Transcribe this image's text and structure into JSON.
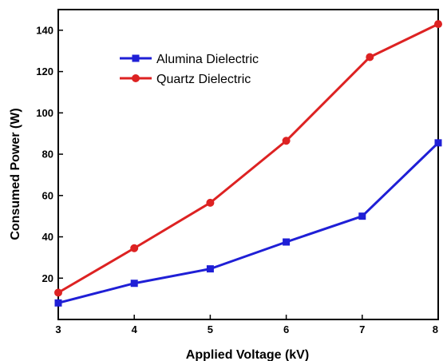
{
  "chart_data": {
    "type": "line",
    "title": "",
    "xlabel": "Applied Voltage (kV)",
    "ylabel": "Consumed Power (W)",
    "xlim": [
      3,
      8
    ],
    "ylim": [
      0,
      150
    ],
    "x_ticks": [
      "3",
      "4",
      "5",
      "6",
      "7",
      "8"
    ],
    "y_ticks": [
      "20",
      "40",
      "60",
      "80",
      "100",
      "120",
      "140"
    ],
    "grid": false,
    "legend_position": "upper-left",
    "series": [
      {
        "name": "Alumina Dielectric",
        "color": "#1f1fd6",
        "marker": "square",
        "x": [
          3,
          4,
          5,
          6,
          7,
          8
        ],
        "y": [
          8,
          17.5,
          24.5,
          37.5,
          50,
          85.5
        ]
      },
      {
        "name": "Quartz Dielectric",
        "color": "#dd2222",
        "marker": "circle",
        "x": [
          3,
          4,
          5,
          6,
          7.1,
          8
        ],
        "y": [
          13,
          34.5,
          56.5,
          86.5,
          127,
          143
        ]
      }
    ]
  }
}
